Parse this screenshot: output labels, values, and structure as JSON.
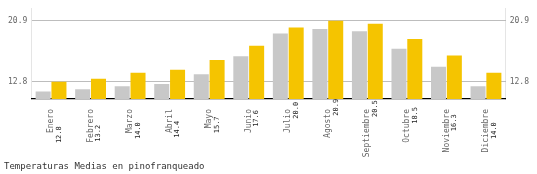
{
  "chart_data": {
    "type": "bar",
    "title": "Temperaturas Medias en pinofranqueado",
    "categories": [
      "Enero",
      "Febrero",
      "Marzo",
      "Abril",
      "Mayo",
      "Junio",
      "Julio",
      "Agosto",
      "Septiembre",
      "Octubre",
      "Noviembre",
      "Diciembre"
    ],
    "series": [
      {
        "color": "#C8C8C8",
        "values": [
          11.5,
          11.8,
          12.2,
          12.5,
          13.8,
          16.2,
          19.2,
          19.8,
          19.5,
          17.2,
          14.8,
          12.2
        ]
      },
      {
        "color": "#F5C400",
        "values": [
          12.8,
          13.2,
          14.0,
          14.4,
          15.7,
          17.6,
          20.0,
          20.9,
          20.5,
          18.5,
          16.3,
          14.0
        ],
        "data_labels": true,
        "value_labels": [
          "12.8",
          "13.2",
          "14.0",
          "14.4",
          "15.7",
          "17.6",
          "20.0",
          "20.9",
          "20.5",
          "18.5",
          "16.3",
          "14.0"
        ]
      }
    ],
    "ylim": [
      10.5,
      22.5
    ],
    "yticks": [
      12.8,
      20.9
    ],
    "y2lim": [
      10.5,
      22.5
    ],
    "y2ticks": [
      12.8,
      20.9
    ],
    "grid": true
  }
}
